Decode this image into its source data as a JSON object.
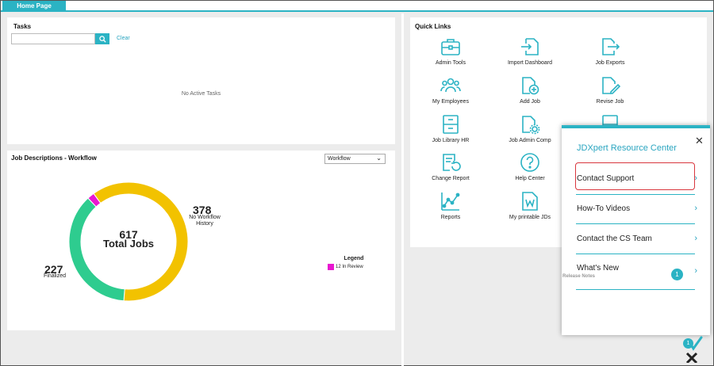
{
  "tabs": [
    {
      "label": "Home Page"
    }
  ],
  "tasks": {
    "title": "Tasks",
    "search_value": "",
    "clear_label": "Clear",
    "empty_message": "No Active Tasks"
  },
  "job_descriptions": {
    "title": "Job Descriptions - Workflow",
    "dropdown_value": "Workflow",
    "total_value": "617",
    "total_label": "Total Jobs",
    "finalized_value": "227",
    "finalized_label": "Finalized",
    "no_workflow_value": "378",
    "no_workflow_label_1": "No Workflow",
    "no_workflow_label_2": "History",
    "legend_title": "Legend",
    "legend_item": "12 In Review"
  },
  "chart_data": {
    "type": "pie",
    "categories": [
      "No Workflow History",
      "Finalized",
      "In Review"
    ],
    "values": [
      378,
      227,
      12
    ],
    "colors": [
      "#f2c200",
      "#2ecc8f",
      "#e818d0"
    ],
    "center_text": "617 Total Jobs"
  },
  "quick_links": {
    "title": "Quick Links",
    "items": [
      {
        "label": "Admin Tools",
        "icon": "briefcase-icon"
      },
      {
        "label": "Import Dashboard",
        "icon": "import-icon"
      },
      {
        "label": "Job Exports",
        "icon": "export-icon"
      },
      {
        "label": "My Employees",
        "icon": "people-icon"
      },
      {
        "label": "Add Job",
        "icon": "add-document-icon"
      },
      {
        "label": "Revise Job",
        "icon": "edit-document-icon"
      },
      {
        "label": "Job Library HR",
        "icon": "file-cabinet-icon"
      },
      {
        "label": "Job Admin Comp",
        "icon": "settings-document-icon"
      },
      {
        "label": "Change Report",
        "icon": "change-report-icon"
      },
      {
        "label": "Help Center",
        "icon": "help-icon"
      },
      {
        "label": "Reports",
        "icon": "chart-icon"
      },
      {
        "label": "My printable JDs",
        "icon": "word-document-icon"
      }
    ]
  },
  "resource_center": {
    "title": "JDXpert Resource Center",
    "items": [
      {
        "label": "Contact Support"
      },
      {
        "label": "How-To Videos"
      },
      {
        "label": "Contact the CS Team"
      },
      {
        "label": "What's New",
        "sub": "Release Notes",
        "badge": "1"
      }
    ]
  },
  "launcher": {
    "badge": "1"
  },
  "colors": {
    "accent": "#2bb3c4",
    "highlight": "#d9363e"
  }
}
